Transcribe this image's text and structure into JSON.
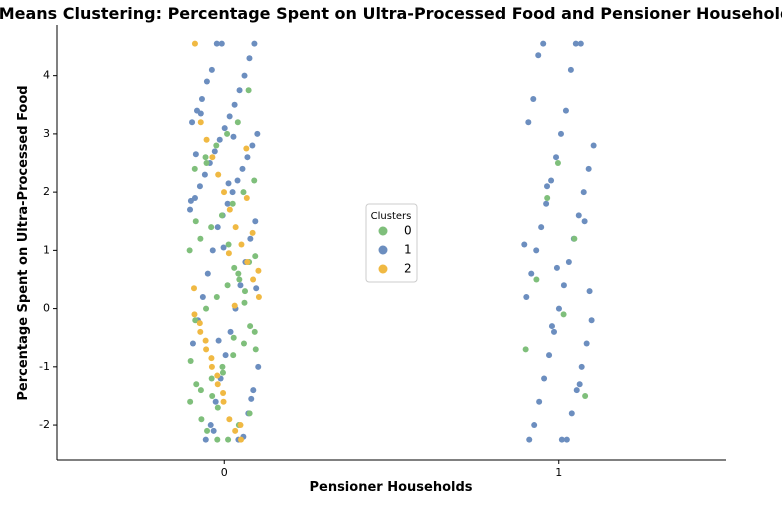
{
  "chart_data": {
    "type": "scatter",
    "title": "K-Means Clustering: Percentage Spent on Ultra-Processed Food and Pensioner Households",
    "x_label": "Pensioner Households",
    "y_label": "Percentage Spent on Ultra-Processed Food",
    "xlim": [
      -0.5,
      1.5
    ],
    "xticks": [
      0,
      1
    ],
    "ylim": [
      -2.6,
      4.87
    ],
    "yticks": [
      -2,
      -1,
      0,
      1,
      2,
      3,
      4
    ],
    "legend_title": "Clusters",
    "legend": "center",
    "series": [
      {
        "name": "0",
        "color": "#7fbf7b",
        "x": [
          0,
          0,
          0,
          0,
          0,
          0,
          0,
          0,
          0,
          0,
          0,
          0,
          0,
          0,
          0,
          0,
          0,
          0,
          0,
          0,
          0,
          0,
          0,
          0,
          0,
          0,
          0,
          0,
          0,
          0,
          0,
          0,
          0,
          0,
          0,
          0,
          0,
          0,
          0,
          0,
          0,
          0,
          0,
          0,
          0,
          0,
          0,
          0,
          1,
          1,
          1,
          1,
          1,
          1,
          1
        ],
        "y": [
          3.75,
          3.2,
          3.0,
          2.8,
          2.6,
          2.4,
          2.2,
          2.0,
          1.8,
          1.6,
          1.4,
          1.2,
          1.0,
          0.8,
          0.6,
          0.4,
          0.2,
          0.0,
          -0.2,
          -0.4,
          -0.6,
          -0.8,
          -1.0,
          -1.2,
          -1.4,
          -1.6,
          -1.8,
          -2.0,
          -2.25,
          -2.25,
          2.5,
          1.5,
          0.9,
          0.1,
          -0.5,
          -1.1,
          -1.5,
          -1.9,
          -0.9,
          -0.3,
          0.5,
          1.1,
          -1.7,
          -2.1,
          -1.3,
          -0.7,
          0.3,
          0.7,
          2.5,
          1.9,
          0.5,
          -0.7,
          -1.5,
          1.2,
          -0.1
        ]
      },
      {
        "name": "1",
        "color": "#6c8ebf",
        "x": [
          0,
          0,
          0,
          0,
          0,
          0,
          0,
          0,
          0,
          0,
          0,
          0,
          0,
          0,
          0,
          0,
          0,
          0,
          0,
          0,
          0,
          0,
          0,
          0,
          0,
          0,
          0,
          0,
          0,
          0,
          0,
          0,
          0,
          0,
          0,
          0,
          0,
          0,
          0,
          0,
          0,
          0,
          0,
          0,
          0,
          0,
          0,
          0,
          0,
          0,
          0,
          0,
          0,
          0,
          0,
          0,
          0,
          0,
          0,
          0,
          0,
          1,
          1,
          1,
          1,
          1,
          1,
          1,
          1,
          1,
          1,
          1,
          1,
          1,
          1,
          1,
          1,
          1,
          1,
          1,
          1,
          1,
          1,
          1,
          1,
          1,
          1,
          1,
          1,
          1,
          1,
          1,
          1,
          1,
          1,
          1,
          1,
          1,
          1,
          1,
          1,
          1,
          1,
          1,
          1
        ],
        "y": [
          4.55,
          4.55,
          4.55,
          4.3,
          4.1,
          4.0,
          3.9,
          3.75,
          3.6,
          3.5,
          3.4,
          3.3,
          3.2,
          3.1,
          3.0,
          2.9,
          2.8,
          2.7,
          2.6,
          2.5,
          2.4,
          2.3,
          2.2,
          2.1,
          2.0,
          1.9,
          1.8,
          1.7,
          1.6,
          1.5,
          1.4,
          1.2,
          1.0,
          0.8,
          0.6,
          0.4,
          0.2,
          0.0,
          -0.2,
          -0.4,
          -0.6,
          -0.8,
          -1.0,
          -1.2,
          -1.4,
          -1.6,
          -1.8,
          -2.0,
          -2.2,
          -2.25,
          -2.25,
          3.35,
          2.95,
          2.65,
          2.15,
          1.85,
          1.05,
          0.35,
          -0.55,
          -1.55,
          -2.1,
          4.55,
          4.55,
          4.55,
          4.35,
          4.1,
          3.6,
          3.4,
          3.2,
          3.0,
          2.8,
          2.6,
          2.4,
          2.2,
          2.0,
          1.8,
          1.6,
          1.4,
          1.2,
          1.0,
          0.8,
          0.6,
          0.4,
          0.2,
          0.0,
          -0.2,
          -0.4,
          -0.6,
          -0.8,
          -1.0,
          -1.2,
          -1.4,
          -1.6,
          -1.8,
          -2.0,
          -2.25,
          -2.25,
          -2.25,
          1.1,
          0.7,
          0.3,
          -0.3,
          1.5,
          2.1,
          -1.3
        ]
      },
      {
        "name": "2",
        "color": "#f0b943",
        "x": [
          0,
          0,
          0,
          0,
          0,
          0,
          0,
          0,
          0,
          0,
          0,
          0,
          0,
          0,
          0,
          0,
          0,
          0,
          0,
          0,
          0,
          0,
          0,
          0,
          0,
          0,
          0,
          0,
          0,
          0,
          0,
          0,
          0,
          0
        ],
        "y": [
          4.55,
          3.2,
          2.9,
          2.6,
          2.3,
          2.0,
          1.7,
          1.4,
          1.1,
          0.8,
          0.5,
          0.2,
          -0.1,
          -0.4,
          -0.7,
          -1.0,
          -1.3,
          -1.6,
          -1.9,
          -2.1,
          -2.25,
          1.9,
          1.3,
          0.65,
          0.35,
          -0.25,
          -0.55,
          -0.85,
          -1.15,
          -1.45,
          0.95,
          0.05,
          -2.0,
          2.75
        ]
      }
    ]
  }
}
